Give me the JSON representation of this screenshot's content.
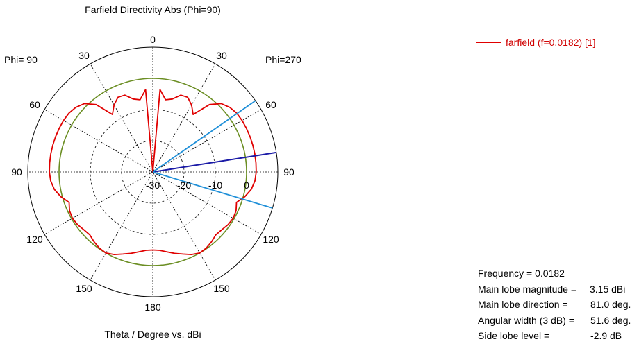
{
  "chart_data": {
    "type": "polar-line",
    "title": "Farfield Directivity Abs (Phi=90)",
    "xlabel": "Theta / Degree vs. dBi",
    "phi_left_label": "Phi= 90",
    "phi_right_label": "Phi=270",
    "angle_labels": [
      "0",
      "30",
      "60",
      "90",
      "120",
      "150",
      "180"
    ],
    "radial_ticks": [
      "-30",
      "-20",
      "-10",
      "0"
    ],
    "radial_range_dbi": [
      -30,
      10
    ],
    "grid": true,
    "legend_position": "top-right",
    "series": [
      {
        "name": "farfield (f=0.0182) [1]",
        "color": "#e00000",
        "theta_deg": [
          0,
          5,
          10,
          15,
          20,
          25,
          30,
          35,
          40,
          45,
          50,
          55,
          60,
          65,
          70,
          75,
          80,
          85,
          90,
          95,
          100,
          105,
          110,
          115,
          120,
          125,
          130,
          135,
          140,
          145,
          150,
          155,
          160,
          165,
          170,
          175,
          180
        ],
        "dbi": [
          -30,
          -3.5,
          -6.5,
          -5.8,
          -3.8,
          -3.6,
          -5.2,
          -7.5,
          -1.8,
          1.0,
          2.2,
          2.8,
          3.0,
          3.05,
          3.1,
          3.12,
          3.15,
          3.13,
          3.1,
          2.8,
          2.0,
          0.5,
          -1.5,
          -0.6,
          -0.3,
          -0.6,
          -1.2,
          -1.5,
          -0.8,
          -0.2,
          0.0,
          -0.8,
          -2.0,
          -3.0,
          -4.0,
          -4.8,
          -5.0
        ]
      }
    ],
    "reference_circle_dbi": 0.0,
    "reference_circle_color": "#6b8e23",
    "main_lobe_direction_deg": 81.0,
    "beamwidth_3db_edges_deg": [
      55.2,
      106.8
    ],
    "main_lobe_line_color": "#1a1aa6",
    "beamwidth_line_color": "#1e8fd8"
  },
  "info": [
    {
      "label": "Frequency = 0.0182",
      "value": ""
    },
    {
      "label": "Main lobe magnitude =",
      "value": "3.15 dBi"
    },
    {
      "label": "Main lobe direction =",
      "value": "81.0 deg."
    },
    {
      "label": "Angular width (3 dB) =",
      "value": "51.6 deg."
    },
    {
      "label": "Side lobe level =",
      "value": "-2.9 dB"
    }
  ]
}
